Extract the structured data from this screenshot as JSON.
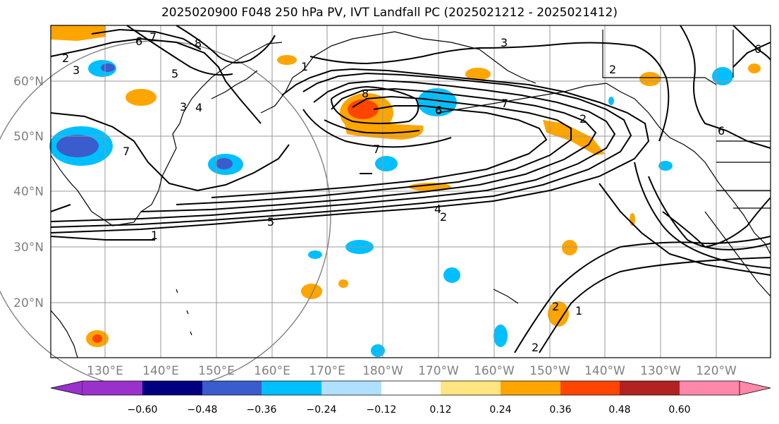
{
  "title": "2025020900 F048 250 hPa PV, IVT Landfall PC (2025021212 - 2025021412)",
  "lat_labels": [
    "60°N",
    "50°N",
    "40°N",
    "30°N",
    "20°N"
  ],
  "lon_labels": [
    "130°E",
    "140°E",
    "150°E",
    "160°E",
    "170°E",
    "180°W",
    "170°W",
    "160°W",
    "150°W",
    "140°W",
    "130°W",
    "120°W"
  ],
  "contour_labels": [
    "2",
    "3",
    "6",
    "7",
    "8",
    "5",
    "4",
    "3",
    "1",
    "8",
    "6",
    "7",
    "7",
    "2",
    "3",
    "2",
    "6",
    "6",
    "5",
    "1",
    "4",
    "2",
    "2",
    "2",
    "1",
    "7"
  ],
  "colorbar": {
    "ticks": [
      "−0.60",
      "−0.48",
      "−0.36",
      "−0.24",
      "−0.12",
      "0.12",
      "0.24",
      "0.36",
      "0.48",
      "0.60"
    ],
    "colors": [
      "#9932cc",
      "#000080",
      "#3a5ccc",
      "#00bfff",
      "#b0e0ff",
      "#ffffff",
      "#ffe680",
      "#ffa500",
      "#ff4500",
      "#b22222",
      "#ff88aa"
    ]
  },
  "colors": {
    "gridline": "#999999",
    "contour": "#000000",
    "axis_label": "#808080"
  }
}
